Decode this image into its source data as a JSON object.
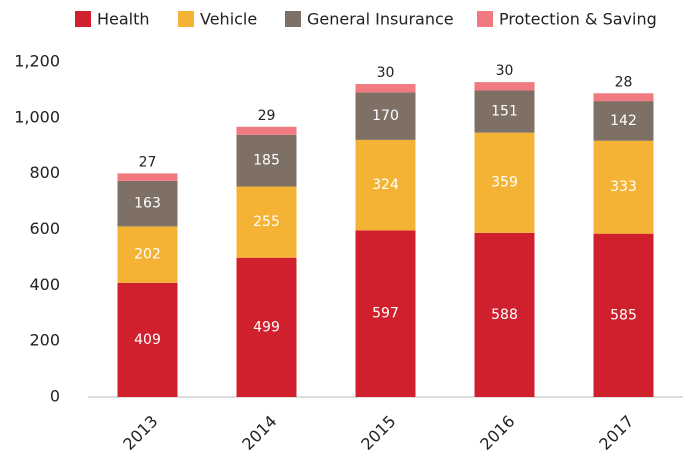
{
  "chart_data": {
    "type": "stacked_bar",
    "categories": [
      "2013",
      "2014",
      "2015",
      "2016",
      "2017"
    ],
    "series": [
      {
        "name": "Health",
        "color": "#d0202e",
        "values": [
          409,
          499,
          597,
          588,
          585
        ]
      },
      {
        "name": "Vehicle",
        "color": "#f5b335",
        "values": [
          202,
          255,
          324,
          359,
          333
        ]
      },
      {
        "name": "General Insurance",
        "color": "#7f7066",
        "values": [
          163,
          185,
          170,
          151,
          142
        ]
      },
      {
        "name": "Protection & Saving",
        "color": "#f07a80",
        "values": [
          27,
          29,
          30,
          30,
          28
        ]
      }
    ],
    "ylim": [
      0,
      1200
    ],
    "yticks": [
      0,
      200,
      400,
      600,
      800,
      {
        "value": 1000,
        "label": "1,000"
      },
      {
        "value": 1200,
        "label": "1,200"
      }
    ],
    "grid": false,
    "legend": "top"
  }
}
